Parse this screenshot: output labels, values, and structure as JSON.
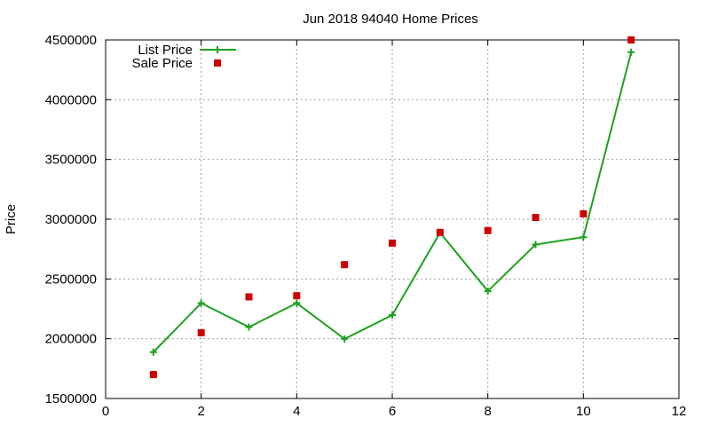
{
  "chart_data": {
    "type": "line",
    "title": "Jun 2018 94040 Home Prices",
    "xlabel": "",
    "ylabel": "Price",
    "xlim": [
      0,
      12
    ],
    "ylim": [
      1500000,
      4500000
    ],
    "xticks": [
      0,
      2,
      4,
      6,
      8,
      10,
      12
    ],
    "yticks": [
      1500000,
      2000000,
      2500000,
      3000000,
      3500000,
      4000000,
      4500000
    ],
    "grid": true,
    "legend_position": "top-left",
    "series": [
      {
        "name": "List Price",
        "style": "line+cross",
        "color": "#1ea01e",
        "x": [
          1,
          2,
          3,
          4,
          5,
          6,
          7,
          8,
          9,
          10,
          11
        ],
        "y": [
          1888000,
          2298000,
          2098000,
          2298000,
          1998000,
          2198000,
          2888000,
          2398000,
          2788000,
          2850000,
          4398000
        ]
      },
      {
        "name": "Sale Price",
        "style": "square-points",
        "color": "#cc0000",
        "x": [
          1,
          2,
          3,
          4,
          5,
          6,
          7,
          8,
          9,
          10,
          11
        ],
        "y": [
          1700000,
          2050000,
          2350000,
          2360000,
          2620000,
          2800000,
          2890000,
          2905000,
          3015000,
          3045000,
          4500000
        ]
      }
    ]
  }
}
